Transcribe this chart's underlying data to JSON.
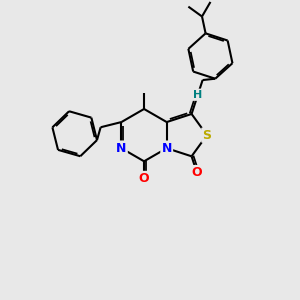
{
  "background_color": "#e8e8e8",
  "bond_color": "#000000",
  "bond_width": 1.5,
  "atom_colors": {
    "N": "#0000ff",
    "O": "#ff0000",
    "S": "#bbaa00",
    "H": "#008080",
    "C": "#000000"
  },
  "figsize": [
    3.0,
    3.0
  ],
  "dpi": 100
}
